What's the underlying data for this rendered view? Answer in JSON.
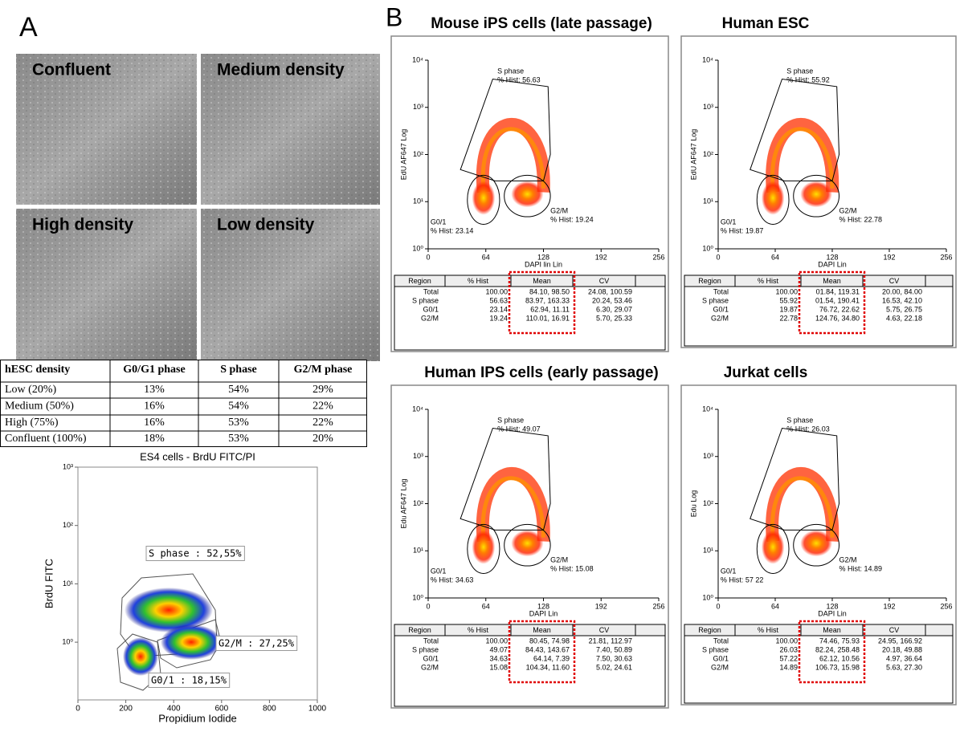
{
  "panel_a": {
    "label": "A",
    "images": [
      "Confluent",
      "Medium density",
      "High density",
      "Low density"
    ],
    "table": {
      "header": [
        "hESC density",
        "G0/G1 phase",
        "S phase",
        "G2/M phase"
      ],
      "rows": [
        [
          "Low (20%)",
          "13%",
          "54%",
          "29%"
        ],
        [
          "Medium (50%)",
          "16%",
          "54%",
          "22%"
        ],
        [
          "High (75%)",
          "16%",
          "53%",
          "22%"
        ],
        [
          "Confluent (100%)",
          "18%",
          "53%",
          "20%"
        ]
      ]
    },
    "plot": {
      "title": "ES4 cells - BrdU FITC/PI",
      "x_label": "Propidium Iodide",
      "y_label": "BrdU FITC",
      "xticks": [
        "0",
        "200",
        "400",
        "600",
        "800",
        "1000"
      ],
      "yticks": [
        "10³",
        "10²",
        "10¹",
        "10⁰"
      ],
      "gates": [
        "S phase : 52,55%",
        "G2/M : 27,25%",
        "G0/1 : 18,15%"
      ]
    }
  },
  "panel_b": {
    "label": "B",
    "plots": [
      {
        "title": "Mouse iPS cells (late passage)",
        "y_label": "EdU AF647 Log",
        "x_label": "DAPI lin Lin",
        "xticks": [
          "0",
          "64",
          "128",
          "192",
          "256"
        ],
        "yticks": [
          "10⁰",
          "10¹",
          "10²",
          "10³",
          "10⁴"
        ],
        "gates": [
          [
            "S phase",
            "% Hist: 56.63"
          ],
          [
            "G2/M",
            "% Hist: 19.24"
          ],
          [
            "G0/1",
            "% Hist: 23.14"
          ]
        ],
        "table": {
          "header": [
            "Region",
            "% Hist",
            "Mean",
            "CV"
          ],
          "rows": [
            [
              "Total",
              "100.00",
              "84.10, 98.50",
              "24.08, 100.59"
            ],
            [
              "S phase",
              "56.63",
              "83.97, 163.33",
              "20.24, 53.46"
            ],
            [
              "G0/1",
              "23.14",
              "62.94, 11.11",
              "6.30, 29.07"
            ],
            [
              "G2/M",
              "19.24",
              "110.01, 16.91",
              "5.70, 25.33"
            ]
          ]
        }
      },
      {
        "title": "Human ESC",
        "y_label": "EdU AF647 Log",
        "x_label": "DAPI Lin",
        "xticks": [
          "0",
          "64",
          "128",
          "192",
          "256"
        ],
        "yticks": [
          "10⁰",
          "10¹",
          "10²",
          "10³",
          "10⁴"
        ],
        "gates": [
          [
            "S phase",
            "% Hist: 55.92"
          ],
          [
            "G2/M",
            "% Hist: 22.78"
          ],
          [
            "G0/1",
            "% Hist: 19.87"
          ]
        ],
        "table": {
          "header": [
            "Region",
            "% Hist",
            "Mean",
            "CV"
          ],
          "rows": [
            [
              "Total",
              "100.00",
              "01.84, 119.31",
              "20.00, 84.00"
            ],
            [
              "S phase",
              "55.92",
              "01.54, 190.41",
              "16.53, 42.10"
            ],
            [
              "G0/1",
              "19.87",
              "76.72, 22.62",
              "5.75, 26.75"
            ],
            [
              "G2/M",
              "22.78",
              "124.76, 34.80",
              "4.63, 22.18"
            ]
          ]
        }
      },
      {
        "title": "Human IPS cells (early passage)",
        "y_label": "Edu AF647 Log",
        "x_label": "DAPI Lin",
        "xticks": [
          "0",
          "64",
          "128",
          "192",
          "256"
        ],
        "yticks": [
          "10⁰",
          "10¹",
          "10²",
          "10³",
          "10⁴"
        ],
        "gates": [
          [
            "S phase",
            "% Hist: 49.07"
          ],
          [
            "G2/M",
            "% Hist: 15.08"
          ],
          [
            "G0/1",
            "% Hist: 34.63"
          ]
        ],
        "table": {
          "header": [
            "Region",
            "% Hist",
            "Mean",
            "CV"
          ],
          "rows": [
            [
              "Total",
              "100.00",
              "80.45, 74.98",
              "21.81, 112.97"
            ],
            [
              "S phase",
              "49.07",
              "84.43, 143.67",
              "7.40, 50.89"
            ],
            [
              "G0/1",
              "34.63",
              "64.14, 7.39",
              "7.50, 30.63"
            ],
            [
              "G2/M",
              "15.08",
              "104.34, 11.60",
              "5.02, 24.61"
            ]
          ]
        }
      },
      {
        "title": "Jurkat cells",
        "y_label": "Edu Log",
        "x_label": "DAPI Lin",
        "xticks": [
          "0",
          "64",
          "128",
          "192",
          "256"
        ],
        "yticks": [
          "10⁰",
          "10¹",
          "10²",
          "10³",
          "10⁴"
        ],
        "gates": [
          [
            "S phase",
            "% Hist: 26.03"
          ],
          [
            "G2/M",
            "% Hist: 14.89"
          ],
          [
            "G0/1",
            "% Hist: 57 22"
          ]
        ],
        "table": {
          "header": [
            "Region",
            "% Hist",
            "Mean",
            "CV"
          ],
          "rows": [
            [
              "Total",
              "100.00",
              "74.46, 75.93",
              "24.95, 166.92"
            ],
            [
              "S phase",
              "26.03",
              "82.24, 258.48",
              "20.18, 49.88"
            ],
            [
              "G0/1",
              "57.22",
              "62.12, 10.56",
              "4.97, 36.64"
            ],
            [
              "G2/M",
              "14.89",
              "106.73, 15.98",
              "5.63, 27.30"
            ]
          ]
        }
      }
    ]
  }
}
